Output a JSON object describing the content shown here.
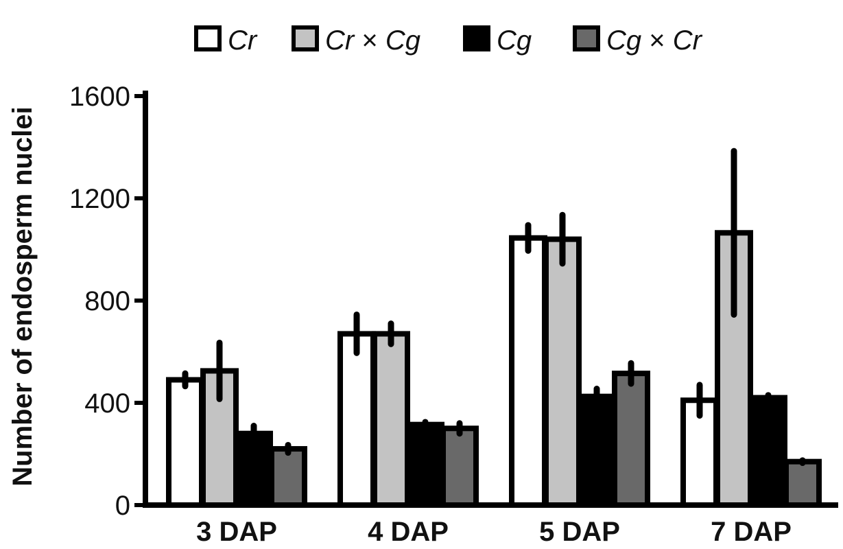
{
  "chart_data": {
    "type": "bar",
    "title": "",
    "xlabel": "",
    "ylabel": "Number of endosperm nuclei",
    "ylim": [
      0,
      1600
    ],
    "yticks": [
      0,
      400,
      800,
      1200,
      1600
    ],
    "grid": false,
    "legend_position": "top",
    "categories": [
      "3 DAP",
      "4 DAP",
      "5 DAP",
      "7 DAP"
    ],
    "series": [
      {
        "name": "Cr",
        "legend_rich": [
          {
            "t": "Cr",
            "it": true
          }
        ],
        "color": "#ffffff",
        "values": [
          490,
          670,
          1045,
          410
        ],
        "errors": [
          25,
          75,
          50,
          60
        ]
      },
      {
        "name": "Cr × Cg",
        "legend_rich": [
          {
            "t": "Cr",
            "it": true
          },
          {
            "t": " × ",
            "it": false
          },
          {
            "t": "Cg",
            "it": true
          }
        ],
        "color": "#c3c3c3",
        "values": [
          525,
          670,
          1040,
          1065
        ],
        "errors": [
          110,
          40,
          95,
          320
        ]
      },
      {
        "name": "Cg",
        "legend_rich": [
          {
            "t": "Cg",
            "it": true
          }
        ],
        "color": "#000000",
        "values": [
          280,
          315,
          425,
          420
        ],
        "errors": [
          30,
          10,
          30,
          10
        ]
      },
      {
        "name": "Cg × Cr",
        "legend_rich": [
          {
            "t": "Cg",
            "it": true
          },
          {
            "t": " × ",
            "it": false
          },
          {
            "t": "Cr",
            "it": true
          }
        ],
        "color": "#696969",
        "values": [
          220,
          300,
          515,
          170
        ],
        "errors": [
          15,
          20,
          40,
          5
        ]
      }
    ]
  }
}
